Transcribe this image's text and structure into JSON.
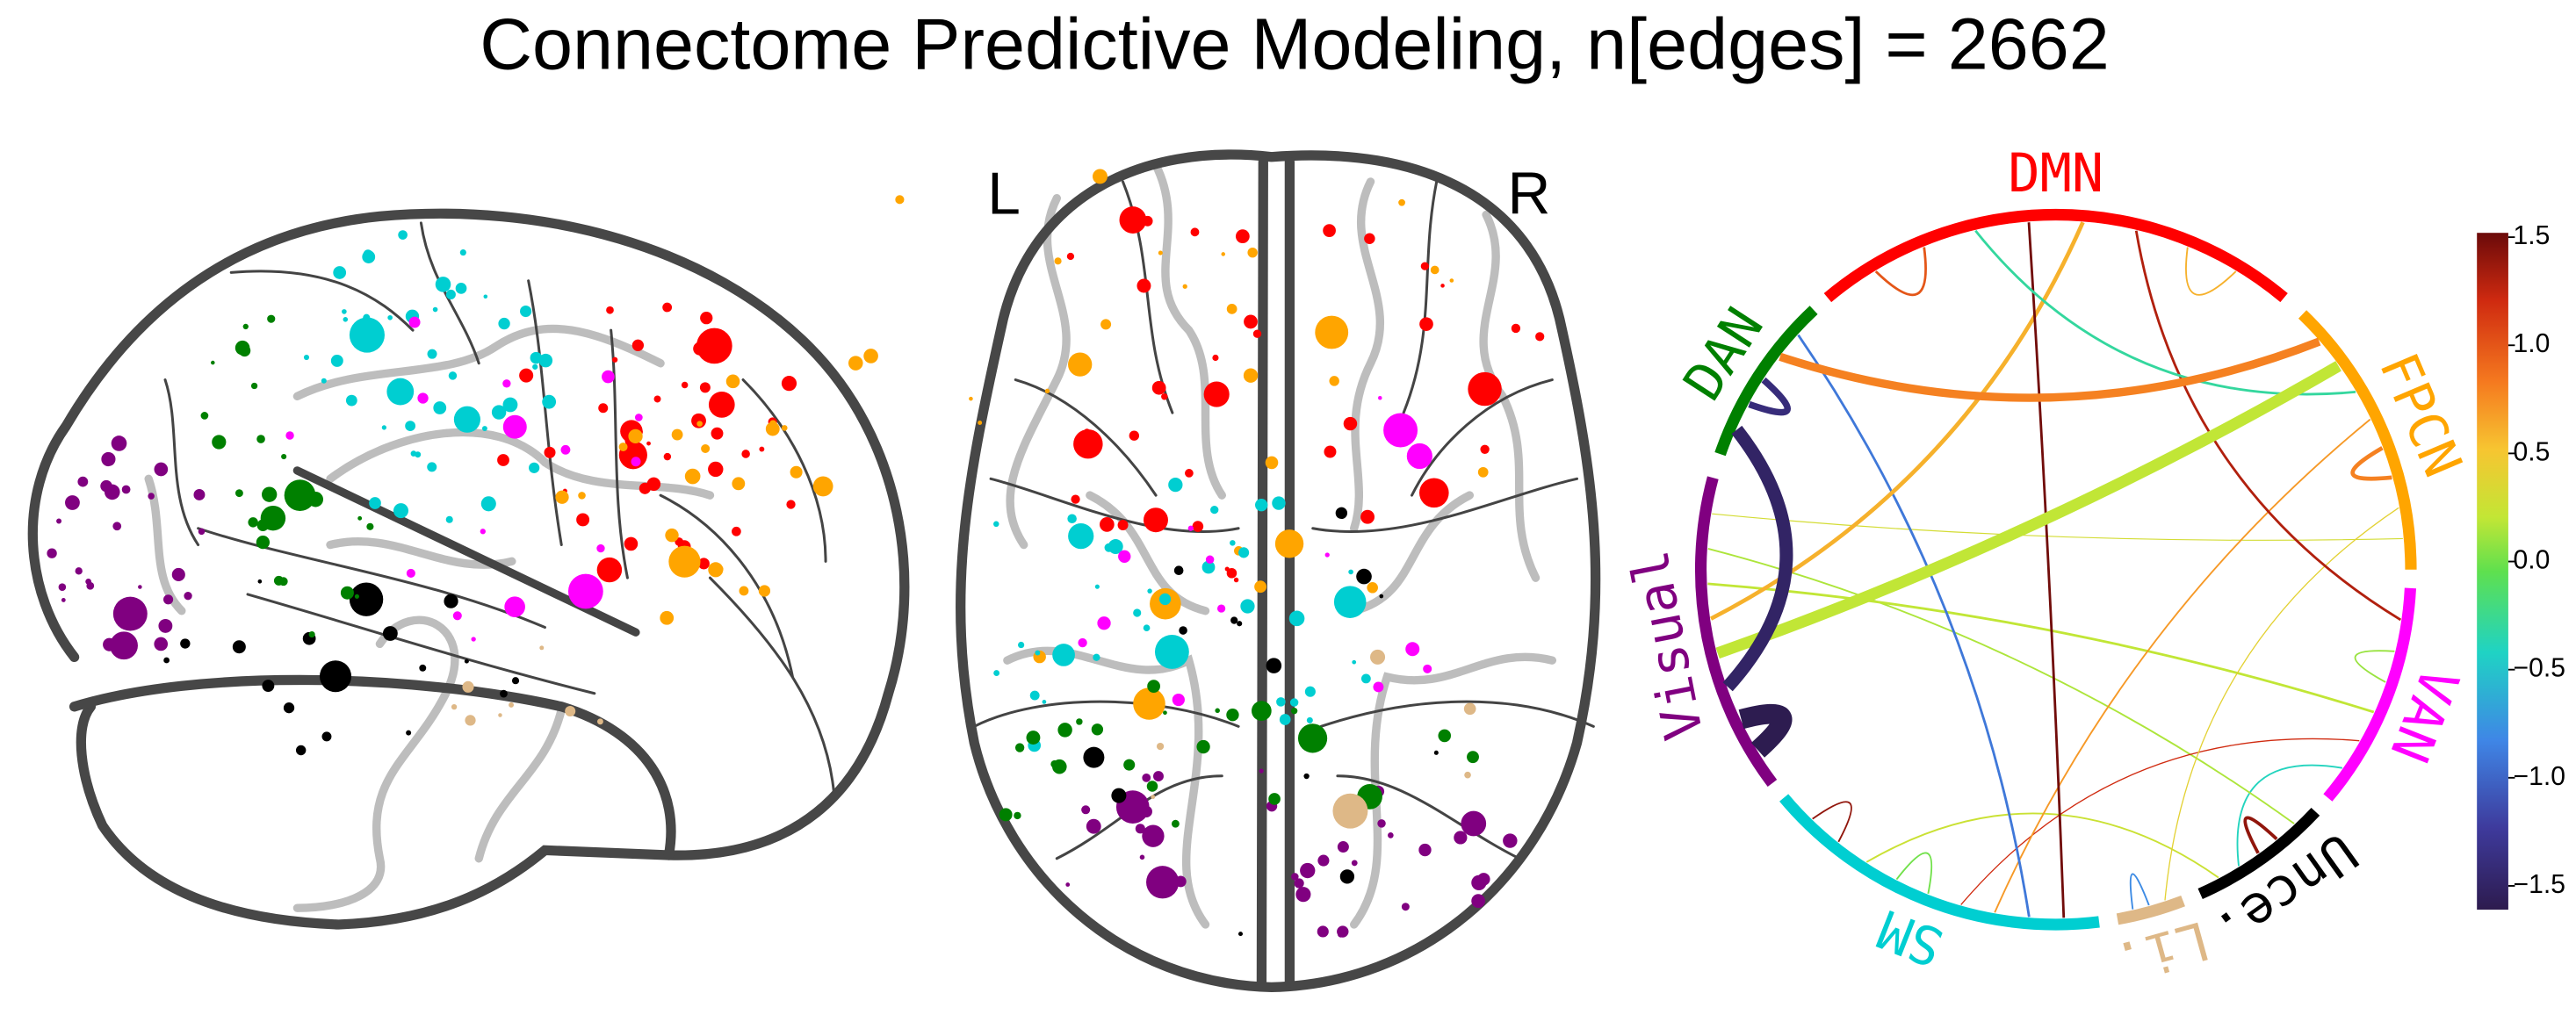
{
  "chart_data": {
    "type": "chord",
    "title": "Connectome Predictive Modeling, n[edges] = 2662",
    "brain_labels": [
      "L",
      "R"
    ],
    "networks": [
      {
        "name": "DMN",
        "color": "#ff0000"
      },
      {
        "name": "FPCN",
        "color": "#ffa500"
      },
      {
        "name": "VAN",
        "color": "#ff00ff"
      },
      {
        "name": "Unce.",
        "color": "#000000"
      },
      {
        "name": "Li.",
        "color": "#deb887"
      },
      {
        "name": "SM",
        "color": "#00ced1"
      },
      {
        "name": "Visual",
        "color": "#800080"
      },
      {
        "name": "DAN",
        "color": "#008000"
      }
    ],
    "edges": [
      {
        "source": "Visual",
        "target": "Visual",
        "value": -1.6,
        "weight": 12
      },
      {
        "source": "Visual",
        "target": "DAN",
        "value": -1.5,
        "weight": 8
      },
      {
        "source": "DAN",
        "target": "DAN",
        "value": -1.4,
        "weight": 4
      },
      {
        "source": "DAN",
        "target": "FPCN",
        "value": 0.8,
        "weight": 5
      },
      {
        "source": "Visual",
        "target": "FPCN",
        "value": 0.2,
        "weight": 7
      },
      {
        "source": "DMN",
        "target": "DMN",
        "value": 1.0,
        "weight": 1.5
      },
      {
        "source": "DMN",
        "target": "FPCN",
        "value": -0.3,
        "weight": 1.5
      },
      {
        "source": "DMN",
        "target": "SM",
        "value": 1.5,
        "weight": 1.5
      },
      {
        "source": "DMN",
        "target": "Visual",
        "value": 0.6,
        "weight": 2.5
      },
      {
        "source": "DMN",
        "target": "VAN",
        "value": 1.3,
        "weight": 1.5
      },
      {
        "source": "DMN",
        "target": "DMN",
        "value": 0.6,
        "weight": 1
      },
      {
        "source": "DAN",
        "target": "SM",
        "value": -0.9,
        "weight": 1.5
      },
      {
        "source": "FPCN",
        "target": "SM",
        "value": 0.7,
        "weight": 1
      },
      {
        "source": "FPCN",
        "target": "FPCN",
        "value": 0.8,
        "weight": 2.5
      },
      {
        "source": "FPCN",
        "target": "Li.",
        "value": 0.4,
        "weight": 0.7
      },
      {
        "source": "VAN",
        "target": "VAN",
        "value": 0.1,
        "weight": 1
      },
      {
        "source": "VAN",
        "target": "Visual",
        "value": 0.2,
        "weight": 1.5
      },
      {
        "source": "VAN",
        "target": "SM",
        "value": 1.2,
        "weight": 0.7
      },
      {
        "source": "Visual",
        "target": "Unce.",
        "value": 0.15,
        "weight": 1
      },
      {
        "source": "SM",
        "target": "SM",
        "value": 0.0,
        "weight": 1
      },
      {
        "source": "Unce.",
        "target": "Unce.",
        "value": 1.4,
        "weight": 2
      },
      {
        "source": "Unce.",
        "target": "VAN",
        "value": -0.4,
        "weight": 1
      },
      {
        "source": "SM",
        "target": "Unce.",
        "value": 0.25,
        "weight": 1
      },
      {
        "source": "SM",
        "target": "SM",
        "value": 1.4,
        "weight": 1
      },
      {
        "source": "Li.",
        "target": "Li.",
        "value": -0.8,
        "weight": 1
      },
      {
        "source": "FPCN",
        "target": "Visual",
        "value": 0.3,
        "weight": 0.6
      }
    ],
    "clim": [
      -1.61,
      1.52
    ],
    "cticks": [
      1.5,
      {
        "value": 1.0,
        "label": "1.0"
      },
      0.5,
      {
        "value": 0,
        "label": "0.0"
      },
      {
        "value": -0.5,
        "label": "−0.5"
      },
      {
        "value": -1.0,
        "label": "−1.0"
      },
      {
        "value": -1.5,
        "label": "−1.5"
      }
    ]
  }
}
